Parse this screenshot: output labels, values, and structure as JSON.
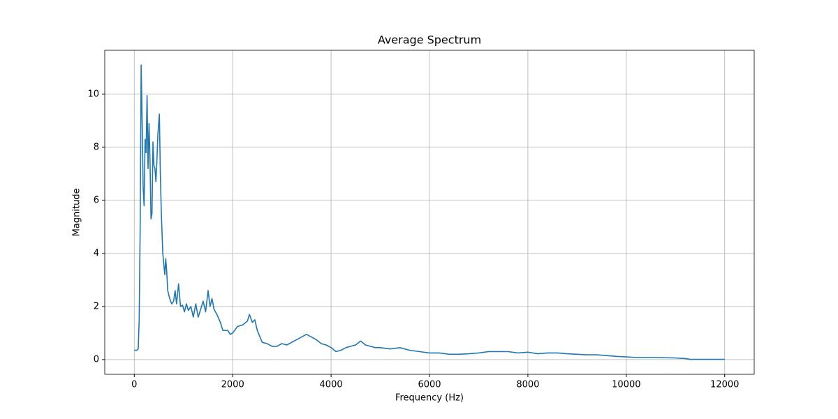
{
  "chart_data": {
    "type": "line",
    "title": "Average Spectrum",
    "x_label": "Frequency (Hz)",
    "y_label": "Magnitude",
    "x": [
      0,
      50,
      80,
      100,
      120,
      130,
      140,
      160,
      180,
      200,
      220,
      240,
      260,
      280,
      300,
      320,
      340,
      360,
      380,
      400,
      420,
      440,
      460,
      480,
      510,
      530,
      550,
      580,
      600,
      620,
      640,
      660,
      680,
      720,
      760,
      800,
      830,
      860,
      900,
      940,
      980,
      1020,
      1060,
      1100,
      1150,
      1200,
      1250,
      1300,
      1350,
      1400,
      1450,
      1500,
      1540,
      1580,
      1620,
      1680,
      1750,
      1800,
      1900,
      1950,
      2000,
      2100,
      2200,
      2300,
      2340,
      2400,
      2450,
      2500,
      2600,
      2700,
      2800,
      2900,
      3000,
      3100,
      3200,
      3300,
      3400,
      3500,
      3600,
      3700,
      3800,
      3900,
      4000,
      4100,
      4200,
      4300,
      4400,
      4500,
      4600,
      4700,
      4800,
      4900,
      5000,
      5200,
      5400,
      5600,
      5800,
      6000,
      6200,
      6400,
      6600,
      6800,
      7000,
      7200,
      7400,
      7600,
      7800,
      8000,
      8200,
      8400,
      8600,
      8800,
      9000,
      9200,
      9400,
      9600,
      9800,
      10000,
      10200,
      10400,
      10600,
      10800,
      11000,
      11200,
      11300,
      11500,
      12000
    ],
    "series": [
      {
        "name": "Average Spectrum",
        "color": "#1f77b4",
        "values": [
          0.35,
          0.35,
          0.4,
          1.5,
          5,
          8,
          11.1,
          9,
          6.5,
          5.8,
          8.3,
          7.8,
          9.95,
          7.2,
          8.9,
          7.5,
          5.3,
          5.5,
          8.2,
          7.3,
          7.2,
          6.7,
          7.5,
          8.5,
          9.25,
          7,
          5.5,
          4,
          3.6,
          3.2,
          3.8,
          3.3,
          2.6,
          2.3,
          2.1,
          2.2,
          2.6,
          2.1,
          2.85,
          2.0,
          2.05,
          1.8,
          2.1,
          1.85,
          2.0,
          1.6,
          2.1,
          1.6,
          1.9,
          2.2,
          1.8,
          2.6,
          2.0,
          2.3,
          1.9,
          1.7,
          1.4,
          1.1,
          1.1,
          0.95,
          1.0,
          1.25,
          1.3,
          1.45,
          1.7,
          1.4,
          1.5,
          1.1,
          0.65,
          0.6,
          0.5,
          0.5,
          0.6,
          0.55,
          0.65,
          0.75,
          0.85,
          0.95,
          0.85,
          0.75,
          0.6,
          0.55,
          0.45,
          0.3,
          0.35,
          0.45,
          0.5,
          0.55,
          0.7,
          0.55,
          0.5,
          0.45,
          0.45,
          0.4,
          0.45,
          0.35,
          0.3,
          0.25,
          0.25,
          0.2,
          0.2,
          0.22,
          0.25,
          0.3,
          0.3,
          0.3,
          0.25,
          0.28,
          0.22,
          0.25,
          0.25,
          0.22,
          0.2,
          0.18,
          0.18,
          0.15,
          0.12,
          0.1,
          0.08,
          0.08,
          0.08,
          0.07,
          0.06,
          0.04,
          0.01,
          0.01,
          0.01
        ]
      }
    ],
    "xlim": [
      -600,
      12600
    ],
    "ylim": [
      -0.555,
      11.655
    ],
    "xticks": [
      0,
      2000,
      4000,
      6000,
      8000,
      10000,
      12000
    ],
    "yticks": [
      0,
      2,
      4,
      6,
      8,
      10
    ],
    "grid": true
  }
}
